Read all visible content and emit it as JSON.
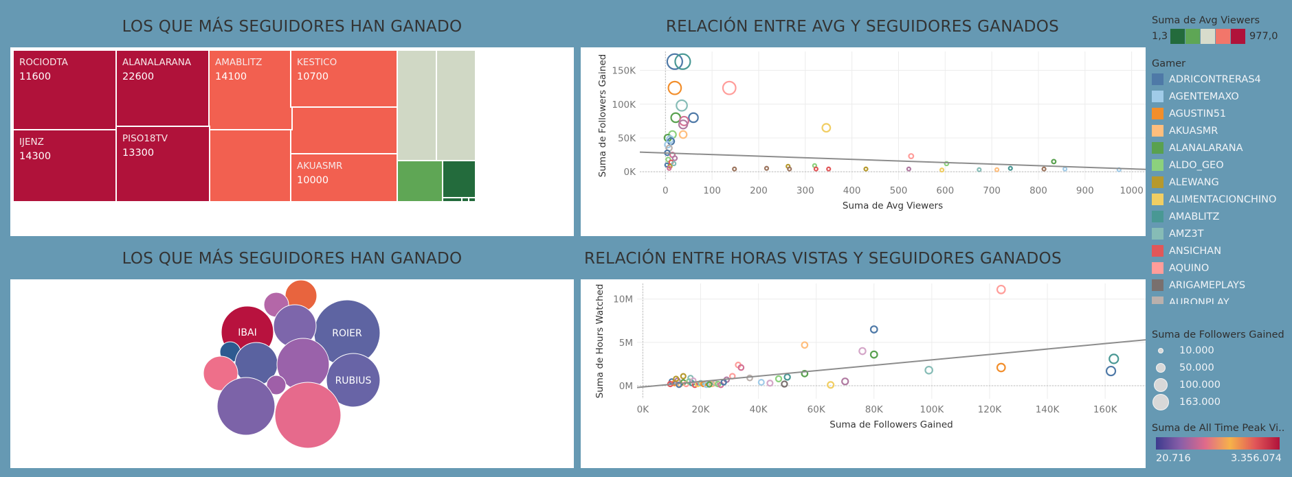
{
  "titles": {
    "treemap": "LOS QUE MÁS SEGUIDORES HAN GANADO",
    "scatter1": "RELACIÓN ENTRE AVG Y SEGUIDORES GANADOS",
    "bubbles": "LOS QUE MÁS SEGUIDORES HAN GANADO",
    "scatter2": "RELACIÓN ENTRE HORAS VISTAS Y SEGUIDORES GANADOS"
  },
  "legend": {
    "avg_title": "Suma de Avg Viewers",
    "avg_min": "1,3",
    "avg_max": "977,0",
    "avg_colors": [
      "#236b3c",
      "#5ea655",
      "#d8dccc",
      "#f2766a",
      "#b0123a"
    ],
    "gamer_title": "Gamer",
    "gamers": [
      {
        "name": "ADRICONTRERAS4",
        "color": "#4e79a7"
      },
      {
        "name": "AGENTEMAXO",
        "color": "#a0cbe8"
      },
      {
        "name": "AGUSTIN51",
        "color": "#f28e2b"
      },
      {
        "name": "AKUASMR",
        "color": "#ffbe7d"
      },
      {
        "name": "ALANALARANA",
        "color": "#59a14f"
      },
      {
        "name": "ALDO_GEO",
        "color": "#8cd17d"
      },
      {
        "name": "ALEWANG",
        "color": "#b6992d"
      },
      {
        "name": "ALIMENTACIONCHINO",
        "color": "#f1ce63"
      },
      {
        "name": "AMABLITZ",
        "color": "#499894"
      },
      {
        "name": "AMZ3T",
        "color": "#86bcb6"
      },
      {
        "name": "ANSICHAN",
        "color": "#e15759"
      },
      {
        "name": "AQUINO",
        "color": "#ff9d9a"
      },
      {
        "name": "ARIGAMEPLAYS",
        "color": "#79706e"
      },
      {
        "name": "AURONPLAY",
        "color": "#bab0ac"
      }
    ],
    "size_title": "Suma de Followers Gained",
    "sizes": [
      "10.000",
      "50.000",
      "100.000",
      "163.000"
    ],
    "peak_title": "Suma de All Time Peak Vi..",
    "peak_min": "20.716",
    "peak_max": "3.356.074",
    "peak_colors": [
      "#3d3b8e",
      "#8a5fa8",
      "#e06a8a",
      "#f6b24a",
      "#e15759",
      "#b0123a"
    ]
  },
  "chart_data": [
    {
      "type": "treemap",
      "title": "LOS QUE MÁS SEGUIDORES HAN GANADO",
      "items": [
        {
          "name": "ROCIODTA",
          "value": 11600
        },
        {
          "name": "ALANALARANA",
          "value": 22600
        },
        {
          "name": "AMABLITZ",
          "value": 14100
        },
        {
          "name": "KESTICO",
          "value": 10700
        },
        {
          "name": "IJENZ",
          "value": 14300
        },
        {
          "name": "PISO18TV",
          "value": 13300
        },
        {
          "name": "AKUASMR",
          "value": 10000
        }
      ]
    },
    {
      "type": "scatter",
      "title": "RELACIÓN ENTRE AVG Y SEGUIDORES GANADOS",
      "xlabel": "Suma de Avg Viewers",
      "ylabel": "Suma de Followers Gained",
      "xlim": [
        -55,
        1030
      ],
      "ylim": [
        -12000,
        178000
      ],
      "xticks": [
        0,
        100,
        200,
        300,
        400,
        500,
        600,
        700,
        800,
        900,
        1000
      ],
      "yticks": [
        {
          "v": 0,
          "label": "0K"
        },
        {
          "v": 50000,
          "label": "50K"
        },
        {
          "v": 100000,
          "label": "100K"
        },
        {
          "v": 150000,
          "label": "150K"
        }
      ],
      "trend": [
        {
          "x": -55,
          "y": 29000
        },
        {
          "x": 1030,
          "y": 3500
        }
      ],
      "points": [
        {
          "x": 20,
          "y": 163000,
          "c": "#4e79a7"
        },
        {
          "x": 37,
          "y": 163000,
          "c": "#499894"
        },
        {
          "x": 20,
          "y": 124000,
          "c": "#f28e2b"
        },
        {
          "x": 137,
          "y": 124000,
          "c": "#ff9d9a"
        },
        {
          "x": 35,
          "y": 98000,
          "c": "#86bcb6"
        },
        {
          "x": 60,
          "y": 80000,
          "c": "#4e79a7"
        },
        {
          "x": 22,
          "y": 80000,
          "c": "#59a14f"
        },
        {
          "x": 40,
          "y": 75000,
          "c": "#d37295"
        },
        {
          "x": 38,
          "y": 70000,
          "c": "#b07aa1"
        },
        {
          "x": 345,
          "y": 65000,
          "c": "#f1ce63"
        },
        {
          "x": 15,
          "y": 55000,
          "c": "#8cd17d"
        },
        {
          "x": 5,
          "y": 50000,
          "c": "#59a14f"
        },
        {
          "x": 10,
          "y": 48000,
          "c": "#a0cbe8"
        },
        {
          "x": 12,
          "y": 45000,
          "c": "#4e79a7"
        },
        {
          "x": 38,
          "y": 55000,
          "c": "#ffbe7d"
        },
        {
          "x": 5,
          "y": 40000,
          "c": "#a0cbe8"
        },
        {
          "x": 8,
          "y": 35000,
          "c": "#bab0ac"
        },
        {
          "x": 4,
          "y": 28000,
          "c": "#4e79a7"
        },
        {
          "x": 15,
          "y": 25000,
          "c": "#d37295"
        },
        {
          "x": 20,
          "y": 20000,
          "c": "#b07aa1"
        },
        {
          "x": 6,
          "y": 18000,
          "c": "#8cd17d"
        },
        {
          "x": 12,
          "y": 14000,
          "c": "#e15759"
        },
        {
          "x": 3,
          "y": 10000,
          "c": "#4e79a7"
        },
        {
          "x": 10,
          "y": 8000,
          "c": "#b6992d"
        },
        {
          "x": 18,
          "y": 12000,
          "c": "#86bcb6"
        },
        {
          "x": 8,
          "y": 5000,
          "c": "#d37295"
        },
        {
          "x": 148,
          "y": 4000,
          "c": "#9d7660"
        },
        {
          "x": 217,
          "y": 5000,
          "c": "#9d7660"
        },
        {
          "x": 263,
          "y": 8000,
          "c": "#b6992d"
        },
        {
          "x": 266,
          "y": 4000,
          "c": "#9d7660"
        },
        {
          "x": 320,
          "y": 9000,
          "c": "#8cd17d"
        },
        {
          "x": 323,
          "y": 4000,
          "c": "#e15759"
        },
        {
          "x": 350,
          "y": 4000,
          "c": "#e15759"
        },
        {
          "x": 430,
          "y": 4000,
          "c": "#b6992d"
        },
        {
          "x": 522,
          "y": 4000,
          "c": "#b07aa1"
        },
        {
          "x": 527,
          "y": 23000,
          "c": "#ff9d9a"
        },
        {
          "x": 593,
          "y": 2500,
          "c": "#f1ce63"
        },
        {
          "x": 603,
          "y": 12000,
          "c": "#8cd17d"
        },
        {
          "x": 673,
          "y": 3000,
          "c": "#86bcb6"
        },
        {
          "x": 711,
          "y": 3000,
          "c": "#ffbe7d"
        },
        {
          "x": 740,
          "y": 5000,
          "c": "#499894"
        },
        {
          "x": 812,
          "y": 4000,
          "c": "#9d7660"
        },
        {
          "x": 833,
          "y": 15000,
          "c": "#59a14f"
        },
        {
          "x": 857,
          "y": 4000,
          "c": "#a0cbe8"
        },
        {
          "x": 973,
          "y": 3000,
          "c": "#a0cbe8"
        }
      ]
    },
    {
      "type": "packed-bubble",
      "title": "LOS QUE MÁS SEGUIDORES HAN GANADO",
      "items": [
        {
          "name": "IBAI",
          "color": "#b8123e",
          "label": true
        },
        {
          "name": "ROIER",
          "color": "#5e64a2",
          "label": true
        },
        {
          "name": "RUBIUS",
          "color": "#6864a6",
          "label": true
        },
        {
          "name": "",
          "color": "#e8643e",
          "label": false
        },
        {
          "name": "",
          "color": "#b467a8",
          "label": false
        },
        {
          "name": "",
          "color": "#7d66ab",
          "label": false
        },
        {
          "name": "",
          "color": "#2d5a90",
          "label": false
        },
        {
          "name": "",
          "color": "#5a62a0",
          "label": false
        },
        {
          "name": "",
          "color": "#9a62aa",
          "label": false
        },
        {
          "name": "",
          "color": "#ee6f8a",
          "label": false
        },
        {
          "name": "",
          "color": "#9f5fa8",
          "label": false
        },
        {
          "name": "",
          "color": "#7c63a8",
          "label": false
        },
        {
          "name": "",
          "color": "#e66a8c",
          "label": false
        }
      ]
    },
    {
      "type": "scatter",
      "title": "RELACIÓN ENTRE HORAS VISTAS Y SEGUIDORES GANADOS",
      "xlabel": "Suma de Followers Gained",
      "ylabel": "Suma de Hours Watched",
      "xlim": [
        -2000,
        174000
      ],
      "ylim": [
        -1500000,
        11800000
      ],
      "xticks": [
        {
          "v": 0,
          "label": "0K"
        },
        {
          "v": 20000,
          "label": "20K"
        },
        {
          "v": 40000,
          "label": "40K"
        },
        {
          "v": 60000,
          "label": "60K"
        },
        {
          "v": 80000,
          "label": "80K"
        },
        {
          "v": 100000,
          "label": "100K"
        },
        {
          "v": 120000,
          "label": "120K"
        },
        {
          "v": 140000,
          "label": "140K"
        },
        {
          "v": 160000,
          "label": "160K"
        }
      ],
      "yticks": [
        {
          "v": 0,
          "label": "0M"
        },
        {
          "v": 5000000,
          "label": "5M"
        },
        {
          "v": 10000000,
          "label": "10M"
        }
      ],
      "trend": [
        {
          "x": -2000,
          "y": -200000
        },
        {
          "x": 174000,
          "y": 5300000
        }
      ],
      "points": [
        {
          "x": 124000,
          "y": 11100000,
          "c": "#ff9d9a"
        },
        {
          "x": 80000,
          "y": 6500000,
          "c": "#4e79a7"
        },
        {
          "x": 56000,
          "y": 4700000,
          "c": "#ffbe7d"
        },
        {
          "x": 76000,
          "y": 4000000,
          "c": "#d4a6c8"
        },
        {
          "x": 80000,
          "y": 3600000,
          "c": "#59a14f"
        },
        {
          "x": 163000,
          "y": 3100000,
          "c": "#499894"
        },
        {
          "x": 33000,
          "y": 2400000,
          "c": "#ff9d9a"
        },
        {
          "x": 34000,
          "y": 2100000,
          "c": "#d37295"
        },
        {
          "x": 124000,
          "y": 2100000,
          "c": "#f28e2b"
        },
        {
          "x": 99000,
          "y": 1800000,
          "c": "#86bcb6"
        },
        {
          "x": 162000,
          "y": 1700000,
          "c": "#4e79a7"
        },
        {
          "x": 56000,
          "y": 1400000,
          "c": "#59a14f"
        },
        {
          "x": 31000,
          "y": 1100000,
          "c": "#ff9d9a"
        },
        {
          "x": 50000,
          "y": 1000000,
          "c": "#499894"
        },
        {
          "x": 47000,
          "y": 800000,
          "c": "#8cd17d"
        },
        {
          "x": 37000,
          "y": 900000,
          "c": "#bab0ac"
        },
        {
          "x": 29000,
          "y": 700000,
          "c": "#b07aa1"
        },
        {
          "x": 14000,
          "y": 1100000,
          "c": "#b6992d"
        },
        {
          "x": 70000,
          "y": 500000,
          "c": "#b07aa1"
        },
        {
          "x": 41000,
          "y": 400000,
          "c": "#a0cbe8"
        },
        {
          "x": 44000,
          "y": 300000,
          "c": "#d4a6c8"
        },
        {
          "x": 49000,
          "y": 200000,
          "c": "#79706e"
        },
        {
          "x": 65000,
          "y": 100000,
          "c": "#f1ce63"
        },
        {
          "x": 10000,
          "y": 500000,
          "c": "#4e79a7"
        },
        {
          "x": 11000,
          "y": 300000,
          "c": "#f28e2b"
        },
        {
          "x": 12000,
          "y": 600000,
          "c": "#b07aa1"
        },
        {
          "x": 13000,
          "y": 200000,
          "c": "#ffbe7d"
        },
        {
          "x": 14000,
          "y": 400000,
          "c": "#59a14f"
        },
        {
          "x": 15000,
          "y": 200000,
          "c": "#ff9d9a"
        },
        {
          "x": 16000,
          "y": 500000,
          "c": "#8cd17d"
        },
        {
          "x": 17000,
          "y": 300000,
          "c": "#499894"
        },
        {
          "x": 18000,
          "y": 100000,
          "c": "#e15759"
        },
        {
          "x": 19000,
          "y": 200000,
          "c": "#f1ce63"
        },
        {
          "x": 20000,
          "y": 300000,
          "c": "#86bcb6"
        },
        {
          "x": 21000,
          "y": 200000,
          "c": "#f28e2b"
        },
        {
          "x": 22000,
          "y": 100000,
          "c": "#a0cbe8"
        },
        {
          "x": 24000,
          "y": 200000,
          "c": "#ffbe7d"
        },
        {
          "x": 25000,
          "y": 300000,
          "c": "#bab0ac"
        },
        {
          "x": 26000,
          "y": 200000,
          "c": "#8cd17d"
        },
        {
          "x": 27000,
          "y": 100000,
          "c": "#d37295"
        },
        {
          "x": 28000,
          "y": 400000,
          "c": "#4e79a7"
        },
        {
          "x": 12500,
          "y": 100000,
          "c": "#4e79a7"
        },
        {
          "x": 9500,
          "y": 200000,
          "c": "#e15759"
        },
        {
          "x": 11500,
          "y": 800000,
          "c": "#b6992d"
        },
        {
          "x": 16500,
          "y": 900000,
          "c": "#86bcb6"
        },
        {
          "x": 17500,
          "y": 600000,
          "c": "#d4a6c8"
        },
        {
          "x": 23000,
          "y": 150000,
          "c": "#59a14f"
        }
      ]
    }
  ]
}
